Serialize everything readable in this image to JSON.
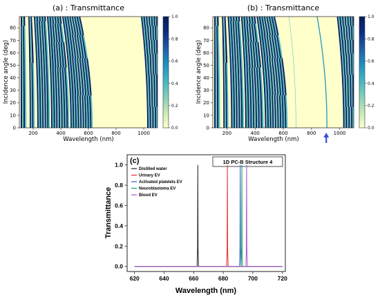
{
  "panel_a": {
    "title": "(a) : Transmittance"
  },
  "panel_b": {
    "title": "(b) : Transmittance"
  },
  "panel_c": {
    "tag": "(c)",
    "box_title": "1D PC-B Structure 4"
  },
  "colorbar_ticks": [
    "0.0",
    "0.2",
    "0.4",
    "0.6",
    "0.8",
    "1.0"
  ],
  "colormap": [
    "#ffffcc",
    "#c7e9b4",
    "#7fcdbb",
    "#41b6c4",
    "#1d91c0",
    "#225ea8",
    "#0c2c84",
    "#081d58"
  ],
  "arrow_color": "#3b4bd6",
  "chart_data": [
    {
      "type": "heatmap",
      "title": "(a) : Transmittance",
      "xlabel": "Wavelength (nm)",
      "ylabel": "Incidence angle (deg)",
      "xticks": [
        "200",
        "400",
        "600",
        "800",
        "1000"
      ],
      "yticks": [
        "0",
        "10",
        "20",
        "30",
        "40",
        "50",
        "60",
        "70",
        "80"
      ],
      "xlim": [
        100,
        1100
      ],
      "ylim": [
        0,
        89
      ],
      "colorbar": {
        "min": 0.0,
        "max": 1.0
      },
      "transmission_bands_nm_at_0deg": [
        [
          110,
          150
        ],
        [
          175,
          210
        ],
        [
          230,
          320
        ],
        [
          330,
          460
        ],
        [
          470,
          630
        ],
        [
          1025,
          1100
        ]
      ],
      "transmission_bands_nm_at_89deg": [
        [
          110,
          140
        ],
        [
          165,
          190
        ],
        [
          205,
          290
        ],
        [
          300,
          400
        ],
        [
          410,
          540
        ],
        [
          980,
          1100
        ]
      ],
      "band_gap_nm_at_0deg": [
        640,
        1020
      ]
    },
    {
      "type": "heatmap",
      "title": "(b) : Transmittance",
      "xlabel": "Wavelength (nm)",
      "ylabel": "Incidence angle (deg)",
      "xticks": [
        "200",
        "400",
        "600",
        "800",
        "1000"
      ],
      "yticks": [
        "0",
        "10",
        "20",
        "30",
        "40",
        "50",
        "60",
        "70",
        "80"
      ],
      "xlim": [
        100,
        1100
      ],
      "ylim": [
        0,
        89
      ],
      "colorbar": {
        "min": 0.0,
        "max": 1.0
      },
      "defect_mode_nm": {
        "at_0deg": 910,
        "at_89deg": 840
      },
      "marked_wavelength_nm": 905
    },
    {
      "type": "line",
      "xlabel": "Wavelength (nm)",
      "ylabel": "Transmittance",
      "xticks": [
        "620",
        "640",
        "660",
        "680",
        "700",
        "720"
      ],
      "yticks": [
        "0.0",
        "0.2",
        "0.4",
        "0.6",
        "0.8",
        "1.0"
      ],
      "xlim": [
        615,
        722
      ],
      "ylim": [
        -0.05,
        1.1
      ],
      "series": [
        {
          "name": "Distilled water",
          "color": "#222222",
          "peak_nm": 662.8,
          "peak": 1.0
        },
        {
          "name": "Urinary EV",
          "color": "#e8282e",
          "peak_nm": 682.8,
          "peak": 1.0
        },
        {
          "name": "Activated platelets EV",
          "color": "#2b5ccf",
          "peak_nm": 691.5,
          "peak": 1.0
        },
        {
          "name": "Neuroblastoma EV",
          "color": "#1aa35c",
          "peak_nm": 692.6,
          "peak": 1.0
        },
        {
          "name": "Blood EV",
          "color": "#b04fd0",
          "peak_nm": 695.8,
          "peak": 1.0
        }
      ]
    }
  ]
}
